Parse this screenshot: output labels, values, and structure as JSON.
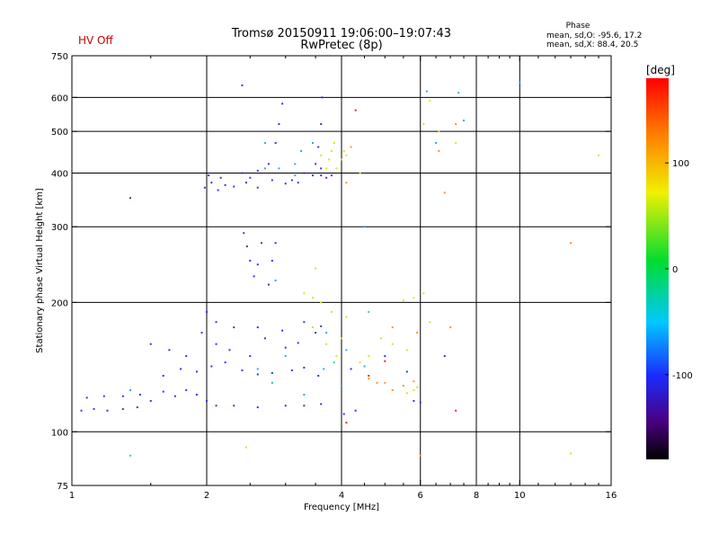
{
  "header": {
    "title": "Tromsø 20150911 19:06:00–19:07:43",
    "subtitle": "RwPretec (8p)",
    "status": "HV Off",
    "status_color": "#cc0000",
    "phase_title": "Phase",
    "phase_line1": "mean, sd,O: -95.6, 17.2",
    "phase_line2": "mean, sd,X:  88.4, 20.5"
  },
  "chart_data": {
    "type": "scatter",
    "title": "Tromsø 20150911 19:06:00–19:07:43",
    "subtitle": "RwPretec (8p)",
    "xlabel": "Frequency [MHz]",
    "ylabel": "Stationary phase Virtual Height [km]",
    "x_scale": "log",
    "y_scale": "log",
    "xlim": [
      1,
      16
    ],
    "ylim": [
      75,
      750
    ],
    "x_ticks": [
      1,
      2,
      4,
      6,
      8,
      10,
      16
    ],
    "x_tick_labels": [
      "1",
      "2",
      "4",
      "6",
      "8",
      "10",
      "16"
    ],
    "x_minor_ticks": [
      1.5,
      2.5,
      3,
      3.5,
      4.5,
      5,
      5.5,
      6.5,
      7,
      7.5,
      8.5,
      9,
      9.5,
      11,
      12,
      13,
      14,
      15
    ],
    "y_ticks": [
      75,
      100,
      200,
      300,
      400,
      500,
      600,
      750
    ],
    "y_tick_labels": [
      "75",
      "100",
      "200",
      "300",
      "400",
      "500",
      "600",
      "750"
    ],
    "grid_x": [
      2,
      4,
      6,
      8,
      10
    ],
    "grid_y": [
      100,
      200,
      300,
      400,
      500,
      600
    ],
    "grid": true,
    "colorbar": {
      "label": "[deg]",
      "range": [
        -180,
        180
      ],
      "ticks": [
        100,
        0,
        -100
      ],
      "tick_labels": [
        "100",
        "0",
        "-100"
      ]
    },
    "series": [
      {
        "color": "#2a3ae0",
        "points": [
          [
            1.05,
            112
          ],
          [
            1.12,
            113
          ],
          [
            1.2,
            112
          ],
          [
            1.3,
            113
          ],
          [
            1.4,
            114
          ],
          [
            1.08,
            120
          ],
          [
            1.18,
            121
          ],
          [
            1.3,
            121
          ],
          [
            1.42,
            122
          ],
          [
            1.5,
            118
          ],
          [
            1.6,
            124
          ],
          [
            1.7,
            121
          ],
          [
            1.8,
            125
          ],
          [
            1.9,
            122
          ],
          [
            2.0,
            118
          ],
          [
            2.1,
            115
          ],
          [
            2.3,
            115
          ],
          [
            2.6,
            114
          ],
          [
            3.0,
            115
          ],
          [
            3.3,
            115
          ],
          [
            3.6,
            116
          ],
          [
            1.6,
            135
          ],
          [
            1.75,
            140
          ],
          [
            1.9,
            138
          ],
          [
            2.05,
            142
          ],
          [
            2.2,
            145
          ],
          [
            2.4,
            139
          ],
          [
            2.6,
            136
          ],
          [
            2.8,
            137
          ],
          [
            3.1,
            139
          ],
          [
            3.3,
            141
          ],
          [
            3.55,
            135
          ],
          [
            1.5,
            160
          ],
          [
            1.65,
            155
          ],
          [
            1.8,
            150
          ],
          [
            1.95,
            170
          ],
          [
            2.1,
            160
          ],
          [
            2.25,
            155
          ],
          [
            2.5,
            150
          ],
          [
            2.7,
            165
          ],
          [
            3.0,
            157
          ],
          [
            3.2,
            161
          ],
          [
            3.5,
            170
          ],
          [
            2.0,
            190
          ],
          [
            2.1,
            180
          ],
          [
            2.3,
            175
          ],
          [
            2.6,
            175
          ],
          [
            2.95,
            172
          ],
          [
            3.3,
            180
          ],
          [
            3.6,
            176
          ],
          [
            1.98,
            370
          ],
          [
            2.05,
            380
          ],
          [
            2.12,
            365
          ],
          [
            2.2,
            375
          ],
          [
            2.3,
            372
          ],
          [
            2.45,
            380
          ],
          [
            2.6,
            370
          ],
          [
            2.8,
            385
          ],
          [
            3.0,
            378
          ],
          [
            3.2,
            380
          ],
          [
            3.45,
            395
          ],
          [
            3.6,
            410
          ],
          [
            2.02,
            395
          ],
          [
            2.15,
            390
          ],
          [
            2.4,
            400
          ],
          [
            2.6,
            405
          ],
          [
            2.75,
            420
          ],
          [
            2.85,
            470
          ],
          [
            2.9,
            520
          ],
          [
            2.95,
            580
          ],
          [
            3.55,
            460
          ],
          [
            3.6,
            520
          ],
          [
            3.62,
            600
          ],
          [
            2.5,
            390
          ],
          [
            3.1,
            385
          ],
          [
            2.42,
            290
          ],
          [
            2.46,
            270
          ],
          [
            2.5,
            250
          ],
          [
            2.55,
            230
          ],
          [
            2.6,
            245
          ],
          [
            2.65,
            275
          ],
          [
            2.75,
            220
          ],
          [
            2.8,
            250
          ],
          [
            2.85,
            275
          ],
          [
            1.35,
            350
          ],
          [
            2.4,
            640
          ],
          [
            4.05,
            110
          ],
          [
            5.8,
            118
          ],
          [
            4.3,
            112
          ],
          [
            4.2,
            140
          ],
          [
            5.0,
            150
          ],
          [
            5.6,
            138
          ],
          [
            6.0,
            117
          ]
        ]
      },
      {
        "color": "#2fa7f0",
        "points": [
          [
            2.6,
            140
          ],
          [
            2.8,
            130
          ],
          [
            3.0,
            150
          ],
          [
            3.3,
            122
          ],
          [
            3.65,
            140
          ],
          [
            3.7,
            170
          ],
          [
            4.1,
            155
          ],
          [
            4.5,
            142
          ],
          [
            2.7,
            410
          ],
          [
            2.9,
            410
          ],
          [
            3.15,
            395
          ],
          [
            3.25,
            450
          ],
          [
            3.45,
            470
          ],
          [
            3.15,
            420
          ],
          [
            2.7,
            470
          ],
          [
            4.5,
            300
          ],
          [
            6.5,
            470
          ],
          [
            7.5,
            530
          ],
          [
            6.2,
            620
          ],
          [
            7.3,
            615
          ],
          [
            10,
            650
          ],
          [
            4.0,
            128
          ],
          [
            1.35,
            125
          ],
          [
            2.85,
            225
          ]
        ]
      },
      {
        "color": "#40d090",
        "points": [
          [
            1.35,
            88
          ],
          [
            4.6,
            190
          ],
          [
            3.85,
            145
          ]
        ]
      },
      {
        "color": "#e0e020",
        "points": [
          [
            3.7,
            410
          ],
          [
            3.75,
            430
          ],
          [
            3.8,
            450
          ],
          [
            3.85,
            470
          ],
          [
            3.9,
            410
          ],
          [
            4.0,
            430
          ],
          [
            4.05,
            450
          ],
          [
            4.1,
            440
          ],
          [
            3.6,
            440
          ],
          [
            3.3,
            210
          ],
          [
            3.45,
            205
          ],
          [
            3.6,
            200
          ],
          [
            3.8,
            190
          ],
          [
            4.1,
            185
          ],
          [
            3.5,
            240
          ],
          [
            3.45,
            175
          ],
          [
            3.7,
            160
          ],
          [
            4.0,
            165
          ],
          [
            3.9,
            150
          ],
          [
            4.4,
            145
          ],
          [
            4.6,
            150
          ],
          [
            4.9,
            165
          ],
          [
            5.2,
            160
          ],
          [
            5.6,
            155
          ],
          [
            5.8,
            125
          ],
          [
            5.6,
            123
          ],
          [
            5.9,
            127
          ],
          [
            5.5,
            202
          ],
          [
            5.8,
            205
          ],
          [
            6.3,
            180
          ],
          [
            6.1,
            210
          ],
          [
            2.45,
            92
          ],
          [
            4.4,
            400
          ],
          [
            6.1,
            520
          ],
          [
            6.6,
            500
          ],
          [
            7.2,
            470
          ],
          [
            6.3,
            590
          ],
          [
            13,
            89
          ],
          [
            15,
            440
          ]
        ]
      },
      {
        "color": "#ff9030",
        "points": [
          [
            4.1,
            380
          ],
          [
            4.2,
            460
          ],
          [
            4.8,
            130
          ],
          [
            5.2,
            125
          ],
          [
            5.5,
            128
          ],
          [
            5.8,
            131
          ],
          [
            5.9,
            170
          ],
          [
            5.2,
            175
          ],
          [
            7.0,
            175
          ],
          [
            6.6,
            450
          ],
          [
            7.2,
            520
          ],
          [
            6.8,
            360
          ],
          [
            13,
            275
          ],
          [
            6.0,
            88
          ],
          [
            5.0,
            130
          ],
          [
            4.6,
            133
          ]
        ]
      },
      {
        "color": "#d83020",
        "points": [
          [
            4.1,
            105
          ],
          [
            7.2,
            112
          ],
          [
            4.6,
            135
          ],
          [
            5.0,
            146
          ],
          [
            4.3,
            560
          ]
        ]
      },
      {
        "color": "#6a20b0",
        "points": [
          [
            3.6,
            395
          ],
          [
            3.5,
            420
          ],
          [
            3.7,
            390
          ],
          [
            3.3,
            400
          ],
          [
            3.8,
            395
          ],
          [
            6.8,
            150
          ]
        ]
      }
    ]
  }
}
